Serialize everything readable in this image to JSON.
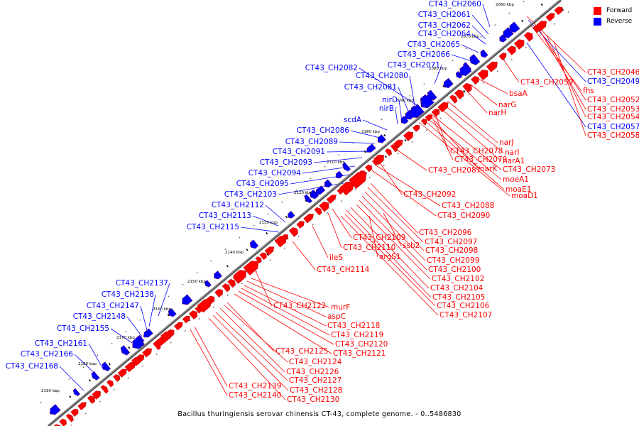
{
  "legend": {
    "forward_label": "Forward",
    "reverse_label": "Reverse",
    "forward_color": "#ff0000",
    "reverse_color": "#0000ff"
  },
  "caption": "Bacillus thuringiensis serovar chinensis CT-43, complete genome. - 0..5486830",
  "ticks": [
    "2060 kbp",
    "2070 kbp",
    "2080 kbp",
    "2090 kbp",
    "2100 kbp",
    "2110 kbp",
    "2120 kbp",
    "2130 kbp",
    "2140 kbp",
    "2150 kbp",
    "2160 kbp",
    "2170 kbp",
    "2180 kbp",
    "2190 kbp"
  ],
  "reverse_labels": [
    "CT43_CH2060",
    "CT43_CH2061",
    "CT43_CH2062",
    "CT43_CH2064",
    "CT43_CH2065",
    "CT43_CH2066",
    "CT43_CH2071",
    "CT43_CH2082",
    "CT43_CH2080",
    "CT43_CH2081",
    "nirD",
    "nirB",
    "scdA",
    "CT43_CH2086",
    "CT43_CH2089",
    "CT43_CH2091",
    "CT43_CH2093",
    "CT43_CH2094",
    "CT43_CH2095",
    "CT43_CH2103",
    "CT43_CH2112",
    "CT43_CH2113",
    "CT43_CH2115",
    "CT43_CH2137",
    "CT43_CH2138",
    "CT43_CH2147",
    "CT43_CH2148",
    "CT43_CH2155",
    "CT43_CH2161",
    "CT43_CH2166",
    "CT43_CH2168"
  ],
  "right_labels": [
    {
      "text": "CT43_CH2046",
      "strand": "forward"
    },
    {
      "text": "CT43_CH2049",
      "strand": "reverse"
    },
    {
      "text": "fhs",
      "strand": "forward"
    },
    {
      "text": "CT43_CH2052",
      "strand": "forward"
    },
    {
      "text": "CT43_CH2053",
      "strand": "forward"
    },
    {
      "text": "CT43_CH2054",
      "strand": "forward"
    },
    {
      "text": "CT43_CH2057",
      "strand": "reverse"
    },
    {
      "text": "CT43_CH2058",
      "strand": "forward"
    }
  ],
  "forward_labels": [
    "CT43_CH2059",
    "bsaA",
    "narG",
    "narH",
    "narJ",
    "narI",
    "narA1",
    "CT43_CH2078",
    "CT43_CH2079",
    "narK",
    "CT43_CH2073",
    "CT43_CH2087",
    "moeA1",
    "moaE1",
    "moaD1",
    "CT43_CH2092",
    "CT43_CH2088",
    "CT43_CH2090",
    "CT43_CH2109",
    "CT43_CH2110",
    "ssb2",
    "argS1",
    "CT43_CH2096",
    "CT43_CH2097",
    "CT43_CH2098",
    "CT43_CH2099",
    "CT43_CH2100",
    "CT43_CH2102",
    "CT43_CH2104",
    "CT43_CH2105",
    "CT43_CH2106",
    "CT43_CH2107",
    "ileS",
    "CT43_CH2114",
    "CT43_CH2122",
    "murF",
    "aspC",
    "CT43_CH2118",
    "CT43_CH2119",
    "CT43_CH2120",
    "CT43_CH2121",
    "CT43_CH2125",
    "CT43_CH2124",
    "CT43_CH2126",
    "CT43_CH2127",
    "CT43_CH2128",
    "CT43_CH2130",
    "CT43_CH2139",
    "CT43_CH2140"
  ]
}
